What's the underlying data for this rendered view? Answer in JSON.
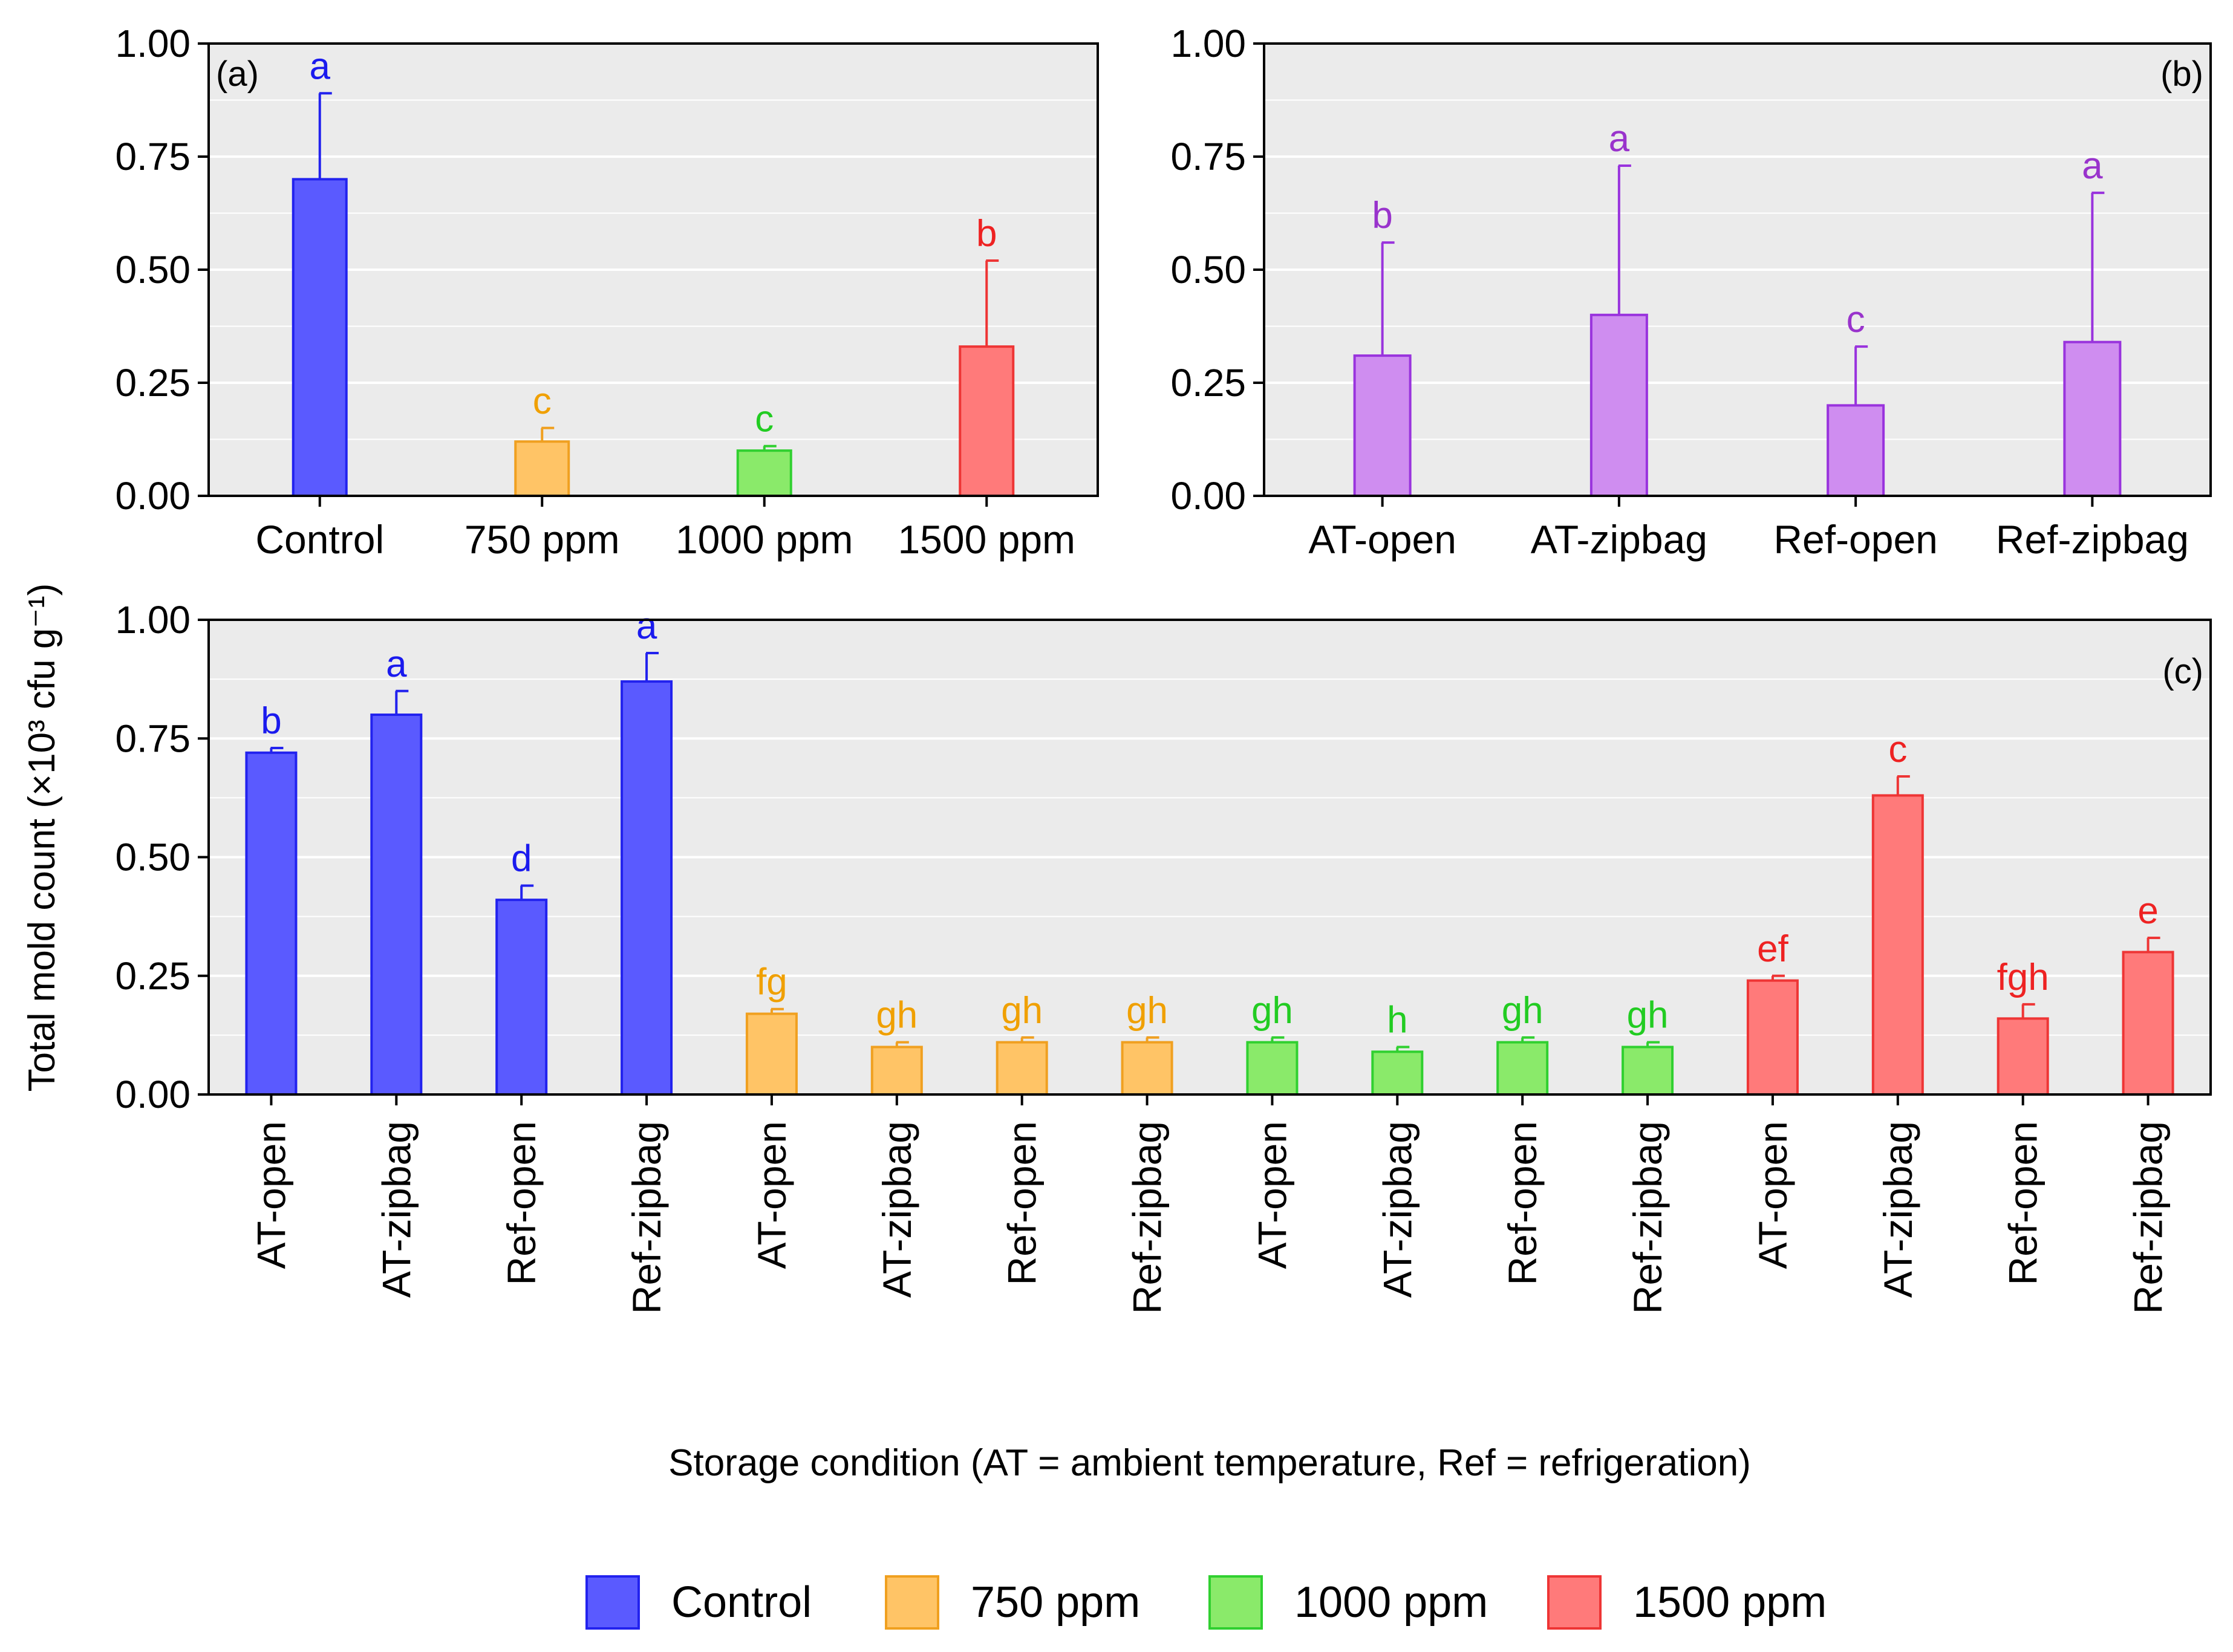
{
  "figure": {
    "ylabel": "Total mold count (×10³ cfu g⁻¹)",
    "xlabel_main": "Storage condition (AT = ambient temperature, Ref = refrigeration)"
  },
  "colors": {
    "Control": "#5a5aff",
    "750 ppm": "#ffc466",
    "1000 ppm": "#8aea6a",
    "1500 ppm": "#ff7a7a",
    "Storage": "#cf8df0",
    "stroke_Control": "#2222ee",
    "stroke_750 ppm": "#f0a020",
    "stroke_1000 ppm": "#30d030",
    "stroke_1500 ppm": "#ee3535",
    "stroke_Storage": "#9933dd",
    "text_Control": "#1a1aee",
    "text_750 ppm": "#f0a000",
    "text_1000 ppm": "#22cc22",
    "text_1500 ppm": "#ee2222",
    "text_Storage": "#9933cc"
  },
  "legend": {
    "items": [
      "Control",
      "750 ppm",
      "1000 ppm",
      "1500 ppm"
    ]
  },
  "chart_data": [
    {
      "type": "bar",
      "panel": "(a)",
      "categories": [
        "Control",
        "750 ppm",
        "1000 ppm",
        "1500 ppm"
      ],
      "values": [
        0.7,
        0.12,
        0.1,
        0.33
      ],
      "errors": [
        0.19,
        0.03,
        0.01,
        0.19
      ],
      "letters": [
        "a",
        "c",
        "c",
        "b"
      ],
      "groups": [
        "Control",
        "750 ppm",
        "1000 ppm",
        "1500 ppm"
      ],
      "ylim": [
        0,
        1
      ],
      "yticks": [
        0.0,
        0.25,
        0.5,
        0.75,
        1.0
      ],
      "ytick_labels": [
        "0.00",
        "0.25",
        "0.50",
        "0.75",
        "1.00"
      ]
    },
    {
      "type": "bar",
      "panel": "(b)",
      "categories": [
        "AT-open",
        "AT-zipbag",
        "Ref-open",
        "Ref-zipbag"
      ],
      "values": [
        0.31,
        0.4,
        0.2,
        0.34
      ],
      "errors": [
        0.25,
        0.33,
        0.13,
        0.33
      ],
      "letters": [
        "b",
        "a",
        "c",
        "a"
      ],
      "groups": [
        "Storage",
        "Storage",
        "Storage",
        "Storage"
      ],
      "ylim": [
        0,
        1
      ],
      "yticks": [
        0.0,
        0.25,
        0.5,
        0.75,
        1.0
      ],
      "ytick_labels": [
        "0.00",
        "0.25",
        "0.50",
        "0.75",
        "1.00"
      ]
    },
    {
      "type": "bar",
      "panel": "(c)",
      "categories": [
        "AT-open",
        "AT-zipbag",
        "Ref-open",
        "Ref-zipbag",
        "AT-open",
        "AT-zipbag",
        "Ref-open",
        "Ref-zipbag",
        "AT-open",
        "AT-zipbag",
        "Ref-open",
        "Ref-zipbag",
        "AT-open",
        "AT-zipbag",
        "Ref-open",
        "Ref-zipbag"
      ],
      "values": [
        0.72,
        0.8,
        0.41,
        0.87,
        0.17,
        0.1,
        0.11,
        0.11,
        0.11,
        0.09,
        0.11,
        0.1,
        0.24,
        0.63,
        0.16,
        0.3
      ],
      "errors": [
        0.01,
        0.05,
        0.03,
        0.06,
        0.01,
        0.01,
        0.01,
        0.01,
        0.01,
        0.01,
        0.01,
        0.01,
        0.01,
        0.04,
        0.03,
        0.03
      ],
      "letters": [
        "b",
        "a",
        "d",
        "a",
        "fg",
        "gh",
        "gh",
        "gh",
        "gh",
        "h",
        "gh",
        "gh",
        "ef",
        "c",
        "fgh",
        "e"
      ],
      "groups": [
        "Control",
        "Control",
        "Control",
        "Control",
        "750 ppm",
        "750 ppm",
        "750 ppm",
        "750 ppm",
        "1000 ppm",
        "1000 ppm",
        "1000 ppm",
        "1000 ppm",
        "1500 ppm",
        "1500 ppm",
        "1500 ppm",
        "1500 ppm"
      ],
      "ylim": [
        0,
        1
      ],
      "yticks": [
        0.0,
        0.25,
        0.5,
        0.75,
        1.0
      ],
      "ytick_labels": [
        "0.00",
        "0.25",
        "0.50",
        "0.75",
        "1.00"
      ]
    }
  ]
}
